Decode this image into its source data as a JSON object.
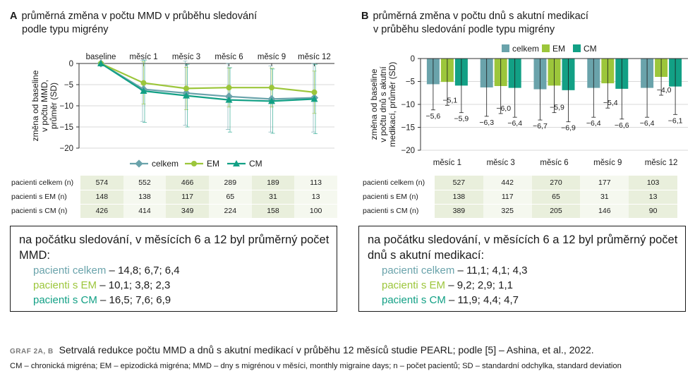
{
  "colors": {
    "celkem": "#6aa3ab",
    "em": "#9cc63b",
    "cm": "#12a085"
  },
  "panelA": {
    "letter": "A",
    "title_line1": "průměrná změna v počtu MMD v průběhu sledování",
    "title_line2": "podle typu migrény",
    "table": {
      "rows": [
        {
          "label": "pacienti celkem (n)",
          "values": [
            "574",
            "552",
            "466",
            "289",
            "189",
            "113"
          ]
        },
        {
          "label": "pacienti s EM (n)",
          "values": [
            "148",
            "138",
            "117",
            "65",
            "31",
            "13"
          ]
        },
        {
          "label": "pacienti s CM (n)",
          "values": [
            "426",
            "414",
            "349",
            "224",
            "158",
            "100"
          ]
        }
      ]
    },
    "note": {
      "heading": "na počátku sledování, v měsících 6 a 12 byl průměrný počet MMD:",
      "lines": [
        {
          "group": "pacienti celkem",
          "values": " – 14,8; 6,7; 6,4"
        },
        {
          "group": "pacienti s EM",
          "values": " – 10,1; 3,8; 2,3"
        },
        {
          "group": "pacienti s CM",
          "values": " – 16,5; 7,6; 6,9"
        }
      ]
    }
  },
  "panelB": {
    "letter": "B",
    "title_line1": "průměrná změna v počtu dnů s akutní medikací",
    "title_line2": "v průběhu sledování podle typu migrény",
    "table": {
      "rows": [
        {
          "label": "pacienti celkem (n)",
          "values": [
            "527",
            "442",
            "270",
            "177",
            "103"
          ]
        },
        {
          "label": "pacienti s EM (n)",
          "values": [
            "138",
            "117",
            "65",
            "31",
            "13"
          ]
        },
        {
          "label": "pacienti s CM (n)",
          "values": [
            "389",
            "325",
            "205",
            "146",
            "90"
          ]
        }
      ]
    },
    "note": {
      "heading": "na počátku sledování, v měsících 6 a 12 byl průměrný počet dnů s akutní medikací:",
      "lines": [
        {
          "group": "pacienti celkem",
          "values": " – 11,1; 4,1; 4,3"
        },
        {
          "group": "pacienti s EM",
          "values": " – 9,2; 2,9; 1,1"
        },
        {
          "group": "pacienti s CM",
          "values": " – 11,9; 4,4; 4,7"
        }
      ]
    }
  },
  "chart_data": [
    {
      "type": "line",
      "title": "",
      "xlabel": "",
      "ylabel": "změna od baseline v počtu MMD, průměr (SD)",
      "categories": [
        "baseline",
        "měsíc 1",
        "měsíc 3",
        "měsíc 6",
        "měsíc 9",
        "měsíc 12"
      ],
      "yticks": [
        0,
        -5,
        -10,
        -15,
        -20
      ],
      "ylim": [
        -20,
        0
      ],
      "legend": "bottom",
      "series": [
        {
          "name": "celkem",
          "key": "celkem",
          "values": [
            0,
            -6.1,
            -7.0,
            -7.8,
            -8.4,
            -8.1
          ],
          "sd": [
            0,
            7.6,
            7.6,
            7.8,
            7.8,
            8.1
          ]
        },
        {
          "name": "EM",
          "key": "em",
          "values": [
            0,
            -4.6,
            -5.9,
            -5.7,
            -5.7,
            -6.8
          ],
          "sd": [
            0,
            5.0,
            5.0,
            4.6,
            4.6,
            5.0
          ]
        },
        {
          "name": "CM",
          "key": "cm",
          "values": [
            0,
            -6.5,
            -7.6,
            -8.6,
            -8.9,
            -8.4
          ],
          "sd": [
            0,
            7.4,
            7.4,
            7.6,
            7.6,
            8.2
          ]
        }
      ]
    },
    {
      "type": "bar",
      "title": "",
      "xlabel": "",
      "ylabel": "změna od baseline v počtu dnů s akutní medikací, průměr (SD)",
      "categories": [
        "měsíc 1",
        "měsíc 3",
        "měsíc 6",
        "měsíc 9",
        "měsíc 12"
      ],
      "yticks": [
        0,
        -5,
        -10,
        -15,
        -20
      ],
      "ylim": [
        -20,
        0
      ],
      "legend": "top",
      "series": [
        {
          "name": "celkem",
          "key": "celkem",
          "values": [
            -5.6,
            -6.3,
            -6.7,
            -6.4,
            -6.4
          ],
          "labels": [
            "−5,6",
            "−6,3",
            "−6,7",
            "−6,4",
            "−6,4"
          ],
          "sd": [
            5.6,
            6.3,
            6.7,
            6.4,
            6.4
          ]
        },
        {
          "name": "EM",
          "key": "em",
          "values": [
            -5.1,
            -6.0,
            -5.9,
            -5.4,
            -4.0
          ],
          "labels": [
            "−5,1",
            "−6,0",
            "−5,9",
            "−5,4",
            "−4,0"
          ],
          "sd": [
            5.1,
            6.0,
            5.9,
            5.4,
            4.0
          ]
        },
        {
          "name": "CM",
          "key": "cm",
          "values": [
            -5.9,
            -6.4,
            -6.9,
            -6.6,
            -6.1
          ],
          "labels": [
            "−5,9",
            "−6,4",
            "−6,9",
            "−6,6",
            "−6,1"
          ],
          "sd": [
            5.9,
            6.4,
            6.9,
            6.6,
            6.1
          ]
        }
      ]
    }
  ],
  "footer": {
    "tag": "GRAF 2A, B",
    "caption": "Setrvalá redukce počtu MMD a dnů s akutní medikací v průběhu 12 měsíců studie PEARL; podle [5] – Ashina, et al., 2022.",
    "abbrev": "CM – chronická migréna; EM – epizodická migréna; MMD – dny s migrénou v měsíci, monthly migraine days; n – počet pacientů; SD – standardní odchylka, standard deviation"
  }
}
